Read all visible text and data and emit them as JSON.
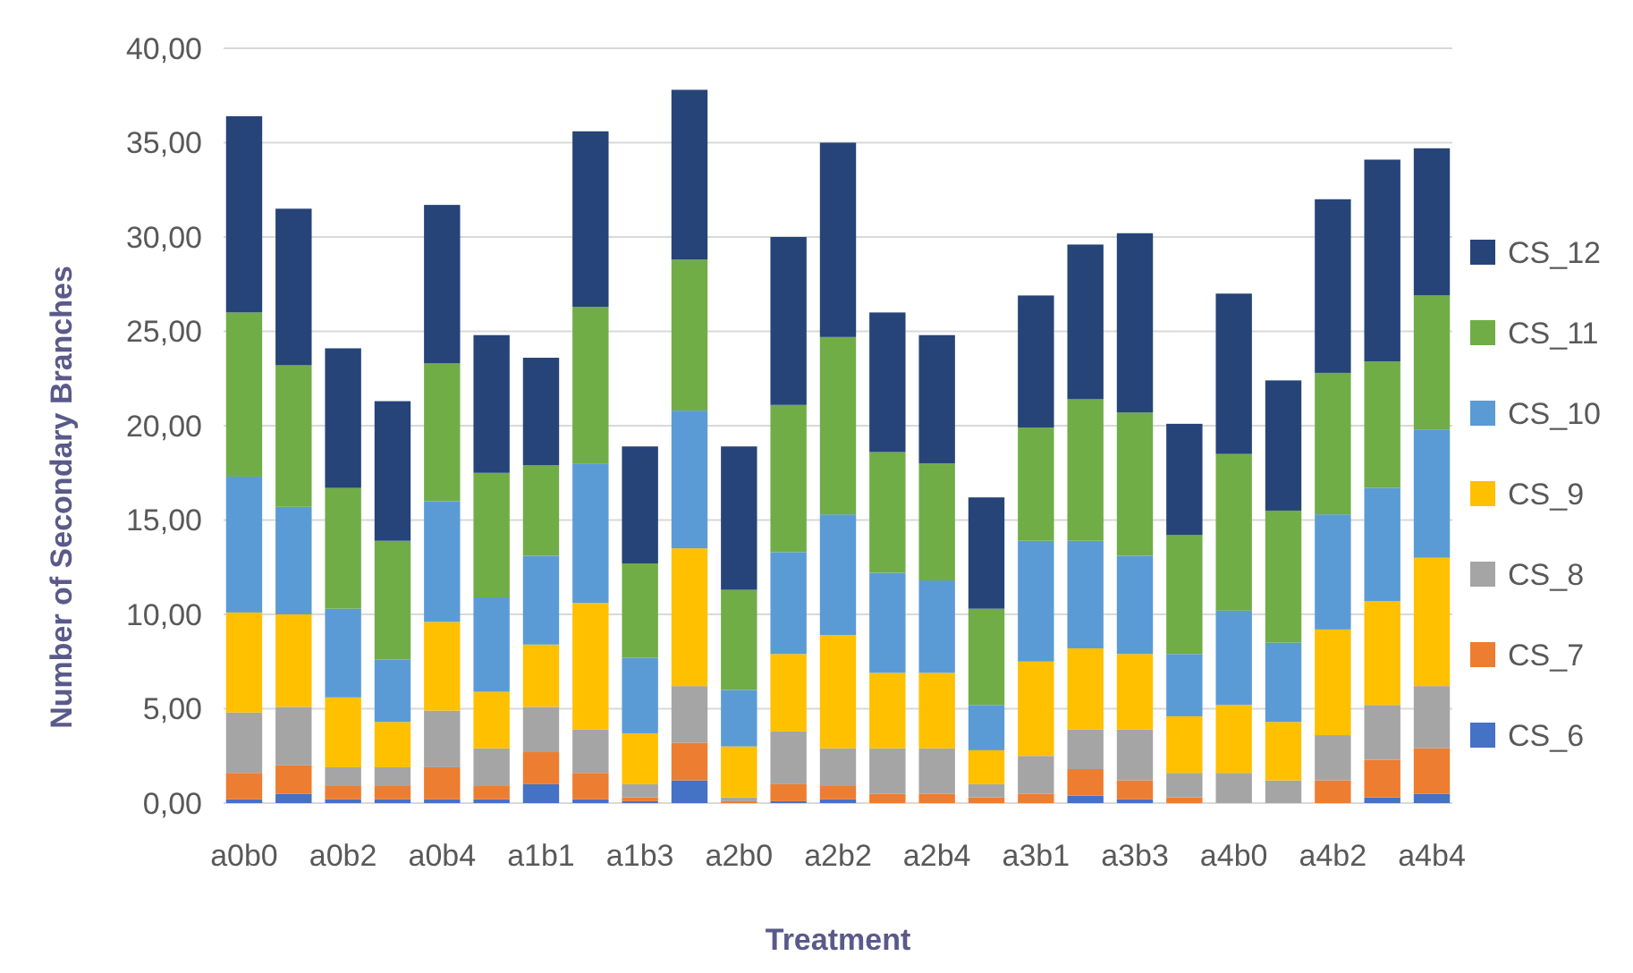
{
  "chart_data": {
    "type": "bar",
    "stacked": true,
    "xlabel": "Treatment",
    "ylabel": "Number of Secondary Branches",
    "categories": [
      "a0b0",
      null,
      "a0b2",
      null,
      "a0b4",
      null,
      "a1b1",
      null,
      "a1b3",
      null,
      "a2b0",
      null,
      "a2b2",
      null,
      "a2b4",
      null,
      "a3b1",
      null,
      "a3b3",
      null,
      "a4b0",
      null,
      "a4b2",
      null,
      "a4b4"
    ],
    "series": [
      {
        "name": "CS_6",
        "color": "#4472c4",
        "values": [
          0.2,
          0.5,
          0.2,
          0.2,
          0.2,
          0.2,
          1.0,
          0.2,
          0.1,
          1.2,
          0,
          0.1,
          0.2,
          0,
          0,
          0,
          0,
          0.4,
          0.2,
          0,
          0,
          0,
          0,
          0.3,
          0.5
        ]
      },
      {
        "name": "CS_7",
        "color": "#ed7d31",
        "values": [
          1.4,
          1.5,
          0.7,
          0.7,
          1.7,
          0.7,
          1.7,
          1.4,
          0.2,
          2.0,
          0.1,
          0.9,
          0.7,
          0.5,
          0.5,
          0.3,
          0.5,
          1.4,
          1.0,
          0.3,
          0,
          0,
          1.2,
          2.0,
          2.4
        ]
      },
      {
        "name": "CS_8",
        "color": "#a5a5a5",
        "values": [
          3.2,
          3.1,
          1.0,
          1.0,
          3.0,
          2.0,
          2.4,
          2.3,
          0.7,
          3.0,
          0.2,
          2.8,
          2.0,
          2.4,
          2.4,
          0.7,
          2.0,
          2.1,
          2.7,
          1.3,
          1.6,
          1.2,
          2.4,
          2.9,
          3.3
        ]
      },
      {
        "name": "CS_9",
        "color": "#ffc000",
        "values": [
          5.3,
          4.9,
          3.7,
          2.4,
          4.7,
          3.0,
          3.3,
          6.7,
          2.7,
          7.3,
          2.7,
          4.1,
          6.0,
          4.0,
          4.0,
          1.8,
          5.0,
          4.3,
          4.0,
          3.0,
          3.6,
          3.1,
          5.6,
          5.5,
          6.8
        ]
      },
      {
        "name": "CS_10",
        "color": "#5b9bd5",
        "values": [
          7.2,
          5.7,
          4.7,
          3.3,
          6.4,
          5.0,
          4.7,
          7.4,
          4.0,
          7.3,
          3.0,
          5.4,
          6.4,
          5.3,
          4.9,
          2.4,
          6.4,
          5.7,
          5.2,
          3.3,
          5.0,
          4.2,
          6.1,
          6.0,
          6.8
        ]
      },
      {
        "name": "CS_11",
        "color": "#70ad47",
        "values": [
          8.7,
          7.5,
          6.4,
          6.3,
          7.3,
          6.6,
          4.8,
          8.3,
          5.0,
          8.0,
          5.3,
          7.8,
          9.4,
          6.4,
          6.2,
          5.1,
          6.0,
          7.5,
          7.6,
          6.3,
          8.3,
          7.0,
          7.5,
          6.7,
          7.1
        ]
      },
      {
        "name": "CS_12",
        "color": "#264478",
        "values": [
          10.4,
          8.3,
          7.4,
          7.4,
          8.4,
          7.3,
          5.7,
          9.3,
          6.2,
          9.0,
          7.6,
          8.9,
          10.3,
          7.4,
          6.8,
          5.9,
          7.0,
          8.2,
          9.5,
          5.9,
          8.5,
          6.9,
          9.2,
          10.7,
          7.8
        ]
      }
    ],
    "ylim": [
      0,
      40
    ],
    "yticks": [
      {
        "value": 0,
        "label": "0,00"
      },
      {
        "value": 5,
        "label": "5,00"
      },
      {
        "value": 10,
        "label": "10,00"
      },
      {
        "value": 15,
        "label": "15,00"
      },
      {
        "value": 20,
        "label": "20,00"
      },
      {
        "value": 25,
        "label": "25,00"
      },
      {
        "value": 30,
        "label": "30,00"
      },
      {
        "value": 35,
        "label": "35,00"
      },
      {
        "value": 40,
        "label": "40,00"
      }
    ],
    "grid": "y",
    "legend": "right"
  }
}
